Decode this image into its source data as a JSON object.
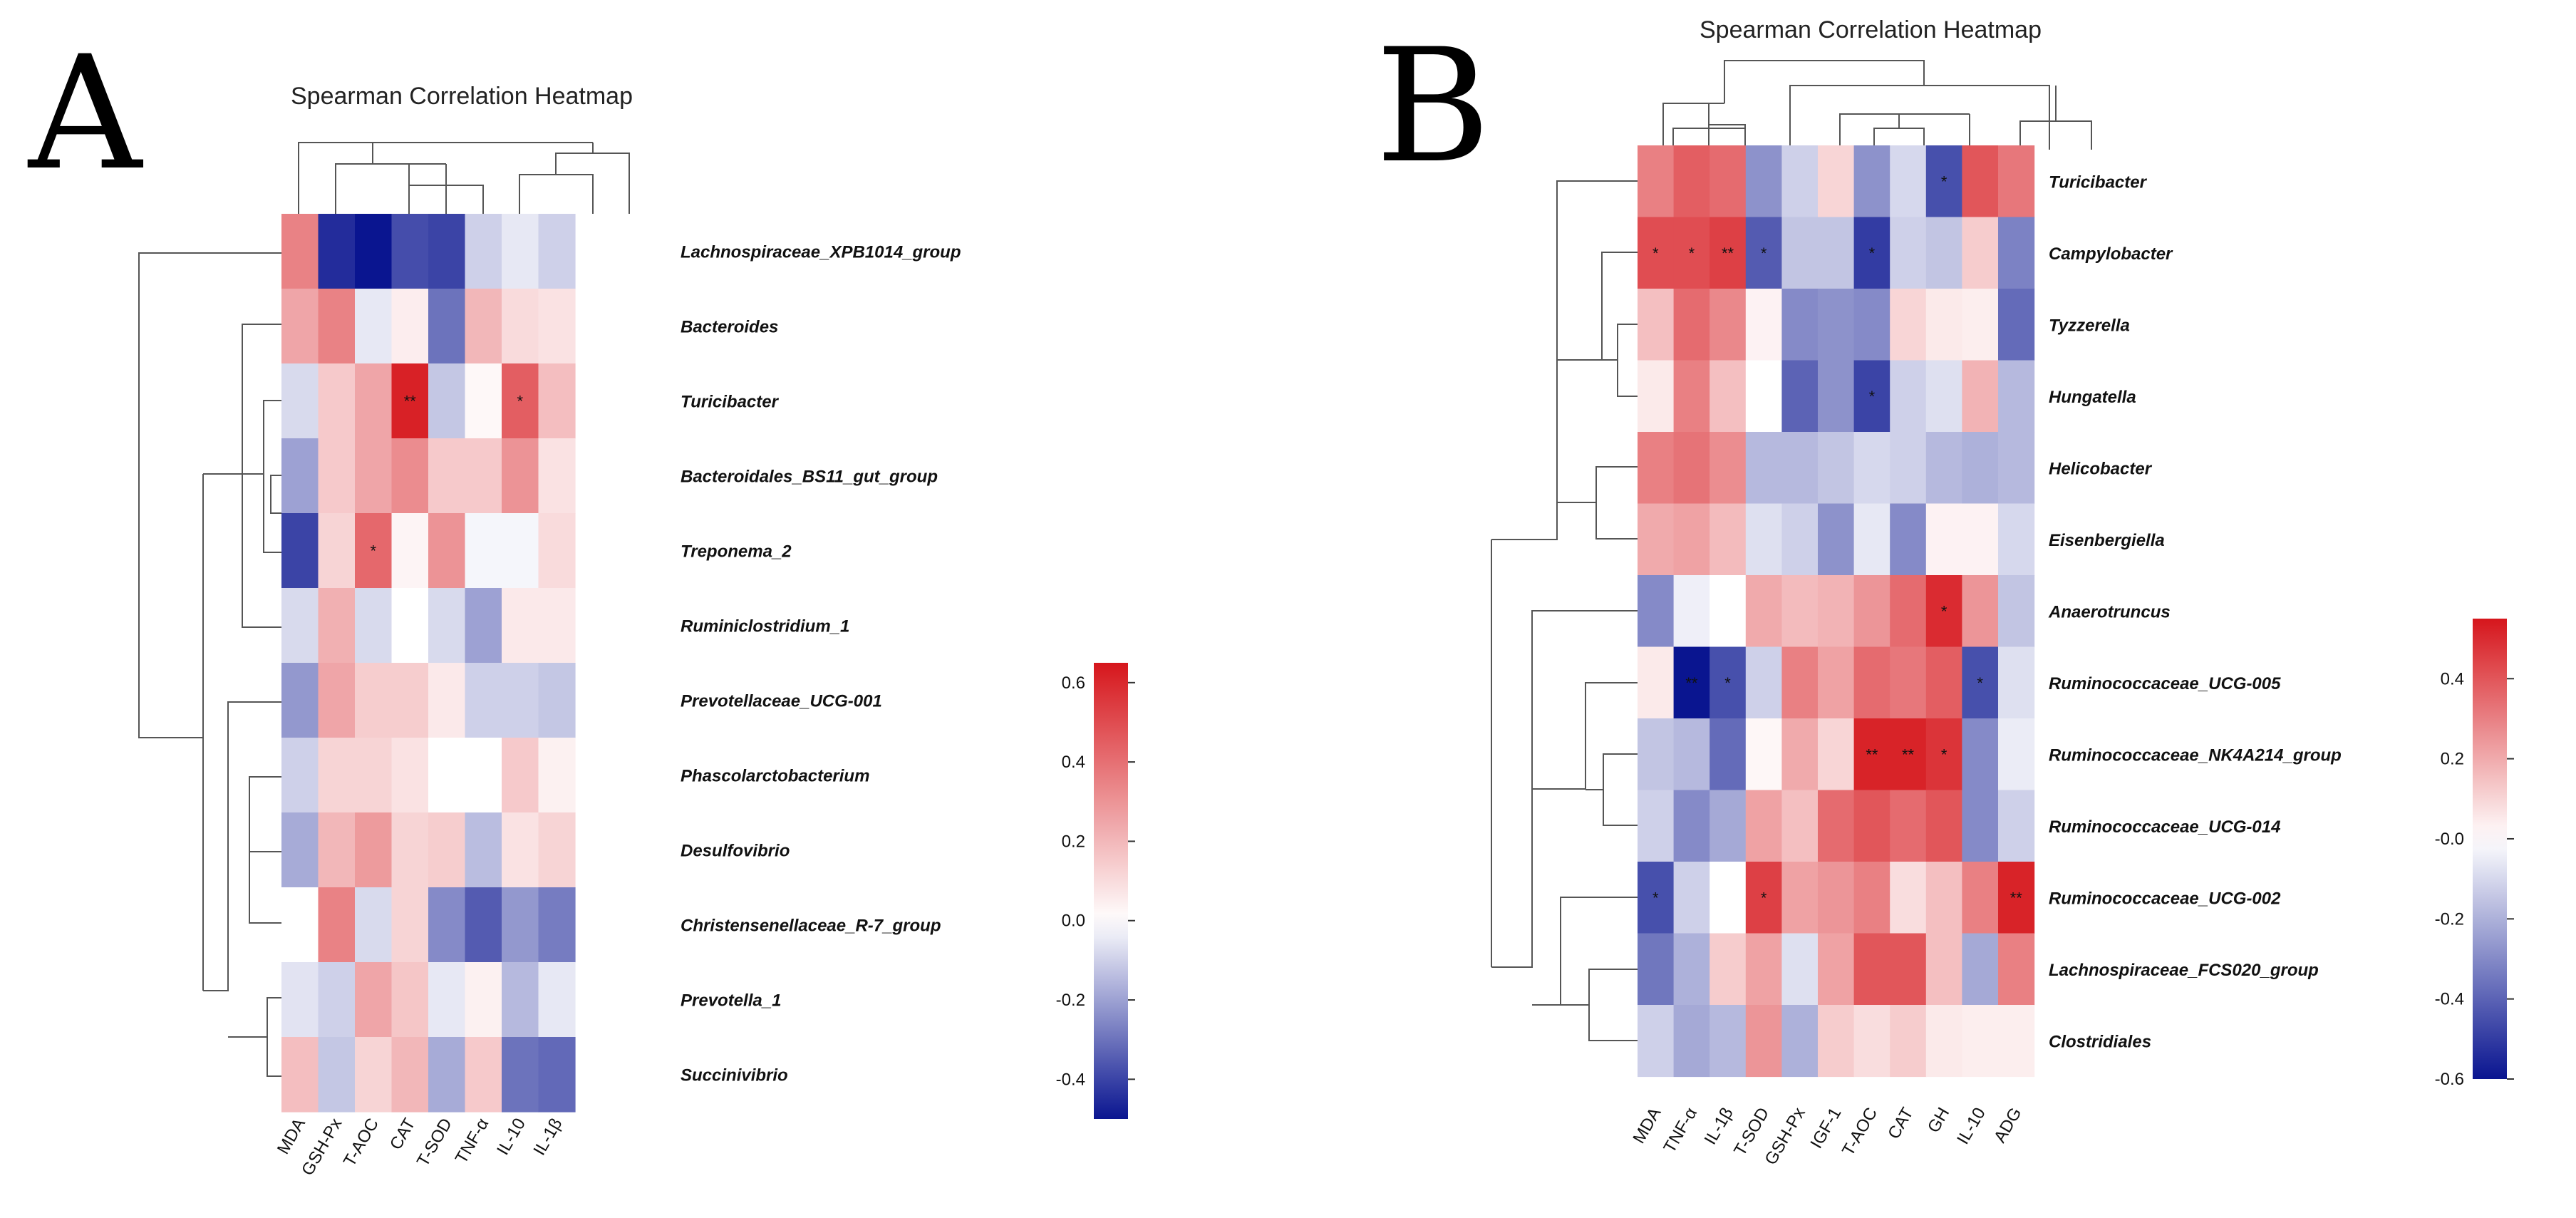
{
  "colors": {
    "negative": "#0a1590",
    "zero": "#ffffff",
    "positive": "#d6161c"
  },
  "chart_data": [
    {
      "panel": "A",
      "type": "heatmap",
      "title": "Spearman Correlation Heatmap",
      "columns": [
        "MDA",
        "GSH-Px",
        "T-AOC",
        "CAT",
        "T-SOD",
        "TNF-α",
        "IL-10",
        "IL-1β"
      ],
      "rows": [
        "Lachnospiraceae_XPB1014_group",
        "Bacteroides",
        "Turicibacter",
        "Bacteroidales_BS11_gut_group",
        "Treponema_2",
        "Ruminiclostridium_1",
        "Prevotellaceae_UCG-001",
        "Phascolarctobacterium",
        "Desulfovibrio",
        "Christensenellaceae_R-7_group",
        "Prevotella_1",
        "Succinivibrio"
      ],
      "values": [
        [
          0.35,
          -0.45,
          -0.5,
          -0.38,
          -0.4,
          -0.1,
          -0.05,
          -0.1
        ],
        [
          0.25,
          0.35,
          -0.05,
          0.05,
          -0.3,
          0.2,
          0.1,
          0.08
        ],
        [
          -0.08,
          0.15,
          0.25,
          0.62,
          -0.12,
          0.02,
          0.45,
          0.18
        ],
        [
          -0.2,
          0.15,
          0.25,
          0.32,
          0.15,
          0.15,
          0.3,
          0.08
        ],
        [
          -0.4,
          0.12,
          0.42,
          0.03,
          0.3,
          -0.02,
          -0.02,
          0.1
        ],
        [
          -0.08,
          0.22,
          -0.08,
          0.0,
          -0.08,
          -0.2,
          0.06,
          0.06
        ],
        [
          -0.22,
          0.25,
          0.14,
          0.14,
          0.06,
          -0.1,
          -0.1,
          -0.12
        ],
        [
          -0.1,
          0.12,
          0.12,
          0.08,
          0.0,
          0.0,
          0.15,
          0.04
        ],
        [
          -0.18,
          0.2,
          0.28,
          0.12,
          0.14,
          -0.14,
          0.08,
          0.12
        ],
        [
          0.0,
          0.35,
          -0.08,
          0.12,
          -0.25,
          -0.35,
          -0.22,
          -0.28
        ],
        [
          -0.06,
          -0.1,
          0.25,
          0.16,
          -0.05,
          0.04,
          -0.15,
          -0.05
        ],
        [
          0.18,
          -0.12,
          0.12,
          0.2,
          -0.18,
          0.15,
          -0.3,
          -0.32
        ]
      ],
      "stars": [
        {
          "row": 2,
          "col": 3,
          "text": "**"
        },
        {
          "row": 2,
          "col": 6,
          "text": "*"
        },
        {
          "row": 4,
          "col": 2,
          "text": "*"
        }
      ],
      "colorbar": {
        "vmin": -0.5,
        "vmax": 0.65,
        "ticks": [
          -0.4,
          -0.2,
          0.0,
          0.2,
          0.4,
          0.6
        ],
        "tick_labels": [
          "-0.4",
          "-0.2",
          "0.0",
          "0.2",
          "0.4",
          "0.6"
        ]
      }
    },
    {
      "panel": "B",
      "type": "heatmap",
      "title": "Spearman Correlation Heatmap",
      "columns": [
        "MDA",
        "TNF-α",
        "IL-1β",
        "T-SOD",
        "GSH-Px",
        "IGF-1",
        "T-AOC",
        "CAT",
        "GH",
        "IL-10",
        "ADG"
      ],
      "rows": [
        "Turicibacter",
        "Campylobacter",
        "Tyzzerella",
        "Hungatella",
        "Helicobacter",
        "Eisenbergiella",
        "Anaerotruncus",
        "Ruminococcaceae_UCG-005",
        "Ruminococcaceae_NK4A214_group",
        "Ruminococcaceae_UCG-014",
        "Ruminococcaceae_UCG-002",
        "Lachnospiraceae_FCS020_group",
        "Clostridiales"
      ],
      "values": [
        [
          0.3,
          0.38,
          0.35,
          -0.28,
          -0.12,
          0.1,
          -0.28,
          -0.1,
          -0.45,
          0.4,
          0.32
        ],
        [
          0.42,
          0.42,
          0.45,
          -0.42,
          -0.15,
          -0.15,
          -0.5,
          -0.12,
          -0.15,
          0.12,
          -0.32
        ],
        [
          0.15,
          0.35,
          0.28,
          0.03,
          -0.3,
          -0.28,
          -0.3,
          0.1,
          0.05,
          0.04,
          -0.38
        ],
        [
          0.05,
          0.3,
          0.15,
          0.0,
          -0.4,
          -0.28,
          -0.48,
          -0.12,
          -0.08,
          0.18,
          -0.18
        ],
        [
          0.3,
          0.33,
          0.27,
          -0.18,
          -0.18,
          -0.15,
          -0.1,
          -0.12,
          -0.18,
          -0.2,
          -0.18
        ],
        [
          0.2,
          0.22,
          0.16,
          -0.08,
          -0.12,
          -0.28,
          -0.06,
          -0.3,
          0.03,
          0.03,
          -0.1
        ],
        [
          -0.3,
          -0.04,
          0.0,
          0.2,
          0.16,
          0.18,
          0.25,
          0.35,
          0.5,
          0.25,
          -0.15
        ],
        [
          0.05,
          -0.6,
          -0.45,
          -0.12,
          0.3,
          0.22,
          0.35,
          0.32,
          0.38,
          -0.45,
          -0.08
        ],
        [
          -0.15,
          -0.18,
          -0.38,
          0.02,
          0.2,
          0.1,
          0.52,
          0.52,
          0.48,
          -0.3,
          -0.05
        ],
        [
          -0.12,
          -0.3,
          -0.22,
          0.22,
          0.15,
          0.35,
          0.4,
          0.35,
          0.4,
          -0.3,
          -0.12
        ],
        [
          -0.45,
          -0.12,
          0.0,
          0.45,
          0.22,
          0.25,
          0.3,
          0.08,
          0.15,
          0.3,
          0.52
        ],
        [
          -0.35,
          -0.2,
          0.12,
          0.22,
          -0.08,
          0.22,
          0.4,
          0.4,
          0.15,
          -0.22,
          0.3
        ],
        [
          -0.12,
          -0.22,
          -0.18,
          0.25,
          -0.2,
          0.12,
          0.08,
          0.12,
          0.05,
          0.04,
          0.04
        ]
      ],
      "stars": [
        {
          "row": 0,
          "col": 8,
          "text": "*"
        },
        {
          "row": 1,
          "col": 0,
          "text": "*"
        },
        {
          "row": 1,
          "col": 1,
          "text": "*"
        },
        {
          "row": 1,
          "col": 2,
          "text": "**"
        },
        {
          "row": 1,
          "col": 3,
          "text": "*"
        },
        {
          "row": 1,
          "col": 6,
          "text": "*"
        },
        {
          "row": 3,
          "col": 6,
          "text": "*"
        },
        {
          "row": 6,
          "col": 8,
          "text": "*"
        },
        {
          "row": 7,
          "col": 1,
          "text": "**"
        },
        {
          "row": 7,
          "col": 2,
          "text": "*"
        },
        {
          "row": 7,
          "col": 9,
          "text": "*"
        },
        {
          "row": 8,
          "col": 6,
          "text": "**"
        },
        {
          "row": 8,
          "col": 7,
          "text": "**"
        },
        {
          "row": 8,
          "col": 8,
          "text": "*"
        },
        {
          "row": 10,
          "col": 0,
          "text": "*"
        },
        {
          "row": 10,
          "col": 3,
          "text": "*"
        },
        {
          "row": 10,
          "col": 10,
          "text": "**"
        }
      ],
      "colorbar": {
        "vmin": -0.6,
        "vmax": 0.55,
        "ticks": [
          -0.6,
          -0.4,
          -0.2,
          0.0,
          0.2,
          0.4
        ],
        "tick_labels": [
          "-0.6",
          "-0.4",
          "-0.2",
          "-0.0",
          "0.2",
          "0.4"
        ]
      }
    }
  ]
}
